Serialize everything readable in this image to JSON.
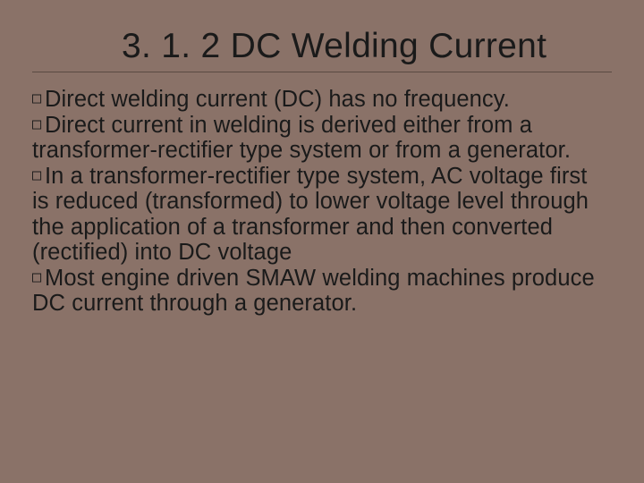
{
  "slide": {
    "background_color": "#8a7268",
    "title_color": "#1a1a1a",
    "text_color": "#1a1a1a",
    "divider_color": "#5a4a42",
    "title_fontsize": 39,
    "body_fontsize": 25.5,
    "title": "3. 1. 2 DC Welding Current",
    "bullets": [
      "Direct welding current (DC) has no frequency.",
      "Direct current in welding is derived either from a transformer-rectifier type system or from a generator.",
      "In a transformer-rectifier type system, AC voltage first is reduced (transformed) to lower voltage level through the application of a transformer and then converted (rectified) into DC voltage",
      "Most engine driven SMAW welding machines produce DC current through a generator."
    ],
    "bullet_marker": "□"
  }
}
